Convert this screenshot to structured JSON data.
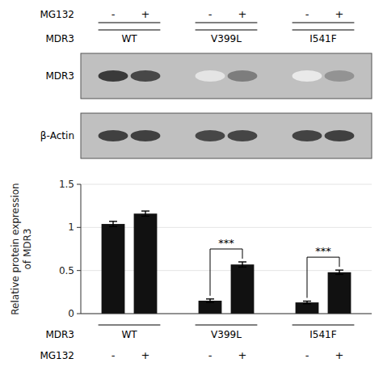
{
  "chart_data": [
    {
      "type": "blot",
      "categories": [
        "-",
        "+",
        "-",
        "+",
        "-",
        "+"
      ],
      "groups": [
        "WT",
        "V399L",
        "I541F"
      ],
      "category_axis_label": "MG132",
      "group_axis_label": "MDR3",
      "color": "#c0c0c0",
      "series": [
        {
          "name": "MDR3",
          "values": [
            0.88,
            0.82,
            0.12,
            0.58,
            0.1,
            0.48
          ]
        },
        {
          "name": "β-Actin",
          "values": [
            0.85,
            0.85,
            0.82,
            0.83,
            0.84,
            0.85
          ]
        }
      ]
    },
    {
      "type": "bar",
      "categories": [
        "-",
        "+",
        "-",
        "+",
        "-",
        "+"
      ],
      "groups": [
        "WT",
        "V399L",
        "I541F"
      ],
      "category_axis_label": "MG132",
      "group_axis_label": "MDR3",
      "values": [
        1.04,
        1.16,
        0.15,
        0.57,
        0.13,
        0.48
      ],
      "errors": [
        0.03,
        0.03,
        0.02,
        0.03,
        0.015,
        0.025
      ],
      "color": "#111111",
      "ylim": [
        0,
        1.5
      ],
      "yticks": [
        0,
        0.5,
        1,
        1.5
      ],
      "ylabel": "Relative protein expression\nof MDR3",
      "significance": [
        {
          "pair": [
            2,
            3
          ],
          "label": "***"
        },
        {
          "pair": [
            4,
            5
          ],
          "label": "***"
        }
      ]
    }
  ]
}
